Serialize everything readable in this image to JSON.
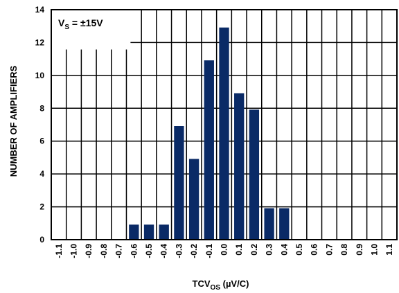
{
  "chart_data": {
    "type": "bar",
    "categories": [
      "-1.1",
      "-1.0",
      "-0.9",
      "-0.8",
      "-0.7",
      "-0.6",
      "-0.5",
      "-0.4",
      "-0.3",
      "-0.2",
      "-0.1",
      "0.0",
      "0.1",
      "0.2",
      "0.3",
      "0.4",
      "0.5",
      "0.6",
      "0.7",
      "0.8",
      "0.9",
      "1.0",
      "1.1"
    ],
    "values": [
      0,
      0,
      0,
      0,
      0,
      1,
      1,
      1,
      7,
      5,
      11,
      13,
      9,
      8,
      2,
      2,
      0,
      0,
      0,
      0,
      0,
      0,
      0
    ],
    "ylim": [
      0,
      14
    ],
    "yticks": [
      0,
      2,
      4,
      6,
      8,
      10,
      12,
      14
    ],
    "ylabel": "NUMBER OF AMPLIFIERS",
    "xlabel": {
      "main": "TCV",
      "sub": "OS",
      "unit": " (µV/C)"
    },
    "annotation": {
      "main": "V",
      "sub": "S",
      "rest": " = ±15V"
    },
    "grid": true,
    "bar_color": "#0a2a66"
  }
}
